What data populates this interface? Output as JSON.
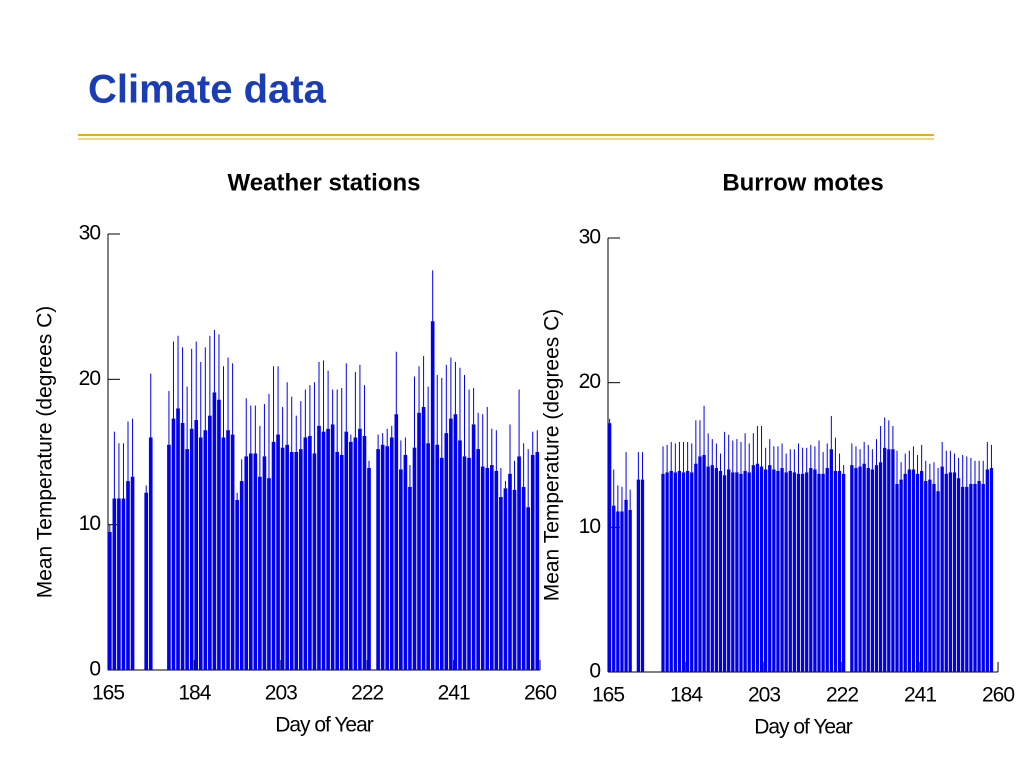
{
  "title": "Climate data",
  "chart_data": [
    {
      "type": "bar",
      "title": "Weather stations",
      "xlabel": "Day of Year",
      "ylabel": "Mean Temperature (degrees C)",
      "color": "#0000ee",
      "x": [
        165,
        166,
        167,
        168,
        169,
        170,
        171,
        172,
        173,
        174,
        175,
        176,
        177,
        178,
        179,
        180,
        181,
        182,
        183,
        184,
        185,
        186,
        187,
        188,
        189,
        190,
        191,
        192,
        193,
        194,
        195,
        196,
        197,
        198,
        199,
        200,
        201,
        202,
        203,
        204,
        205,
        206,
        207,
        208,
        209,
        210,
        211,
        212,
        213,
        214,
        215,
        216,
        217,
        218,
        219,
        220,
        221,
        222,
        223,
        224,
        225,
        226,
        227,
        228,
        229,
        230,
        231,
        232,
        233,
        234,
        235,
        236,
        237,
        238,
        239,
        240,
        241,
        242,
        243,
        244,
        245,
        246,
        247,
        248,
        249,
        250,
        251,
        252,
        253,
        254,
        255,
        256,
        257,
        258,
        259
      ],
      "values": [
        9.5,
        11.8,
        11.8,
        11.8,
        13,
        13.3,
        null,
        null,
        12.2,
        16,
        null,
        null,
        null,
        15.5,
        17.3,
        18,
        17,
        15.2,
        16.6,
        17.2,
        16,
        16.5,
        17.5,
        19.1,
        18.6,
        16,
        16.5,
        16.2,
        11.7,
        13,
        14.7,
        14.9,
        14.9,
        13.3,
        14.7,
        13.2,
        15.7,
        16.2,
        15.3,
        15.5,
        15,
        15,
        15.2,
        16,
        16.1,
        14.9,
        16.8,
        16.4,
        16.6,
        16.9,
        15,
        14.8,
        16.4,
        15.7,
        16,
        16.6,
        16.1,
        13.9,
        null,
        15.2,
        15.5,
        15.4,
        16,
        17.6,
        13.8,
        14.8,
        12.6,
        15.3,
        17.7,
        18.1,
        15.6,
        24,
        15.5,
        14.6,
        16.3,
        17.3,
        17.6,
        15.8,
        14.7,
        14.6,
        16.9,
        15.2,
        14,
        13.9,
        14.1,
        13.7,
        11.9,
        12.5,
        13.5,
        12.4,
        14.7,
        12.6,
        11.2,
        14.8,
        15
      ],
      "errors": [
        0.5,
        4.6,
        3.8,
        3.8,
        4.1,
        4,
        null,
        null,
        0.5,
        4.4,
        null,
        null,
        null,
        3.7,
        5.3,
        5,
        5.2,
        4.3,
        5.5,
        5.4,
        5.2,
        5.7,
        5.5,
        4.3,
        4.5,
        4.9,
        5,
        4.9,
        0.5,
        1.5,
        4,
        3.3,
        3.3,
        3.5,
        3.6,
        5.8,
        5.2,
        4.7,
        2.8,
        4.3,
        3.8,
        2.5,
        3.3,
        3.3,
        3.5,
        4.9,
        4.4,
        4.9,
        4,
        2.4,
        4.3,
        4.6,
        4.7,
        0.5,
        4.5,
        4.4,
        3.5,
        0.5,
        null,
        1,
        0.8,
        1.2,
        0.8,
        4.3,
        2,
        1.2,
        1.5,
        4.9,
        3.2,
        3.5,
        3.9,
        3.5,
        4.8,
        5.5,
        4.7,
        4.2,
        3.6,
        5,
        5.6,
        4.7,
        2.5,
        2.5,
        3.6,
        4.2,
        2.5,
        2.8,
        2,
        0.5,
        3.4,
        2,
        4.6,
        3,
        4,
        1.6,
        1.5
      ],
      "xlim": [
        165,
        260
      ],
      "xticks": [
        165,
        184,
        203,
        222,
        241,
        260
      ],
      "ylim": [
        0,
        30
      ],
      "yticks": [
        0,
        10,
        20,
        30
      ]
    },
    {
      "type": "bar",
      "title": "Burrow motes",
      "xlabel": "Day of Year",
      "ylabel": "Mean Temperature (degrees C)",
      "color": "#0000ee",
      "x": [
        165,
        166,
        167,
        168,
        169,
        170,
        171,
        172,
        173,
        174,
        175,
        176,
        177,
        178,
        179,
        180,
        181,
        182,
        183,
        184,
        185,
        186,
        187,
        188,
        189,
        190,
        191,
        192,
        193,
        194,
        195,
        196,
        197,
        198,
        199,
        200,
        201,
        202,
        203,
        204,
        205,
        206,
        207,
        208,
        209,
        210,
        211,
        212,
        213,
        214,
        215,
        216,
        217,
        218,
        219,
        220,
        221,
        222,
        223,
        224,
        225,
        226,
        227,
        228,
        229,
        230,
        231,
        232,
        233,
        234,
        235,
        236,
        237,
        238,
        239,
        240,
        241,
        242,
        243,
        244,
        245,
        246,
        247,
        248,
        249,
        250,
        251,
        252,
        253,
        254,
        255,
        256,
        257,
        258
      ],
      "values": [
        17.2,
        11.5,
        11.1,
        11.1,
        11.9,
        11.2,
        null,
        13.3,
        13.3,
        null,
        null,
        null,
        null,
        13.7,
        13.8,
        13.9,
        13.8,
        13.9,
        13.8,
        13.9,
        13.8,
        14.4,
        14.9,
        15,
        14.2,
        14.3,
        14.1,
        13.9,
        13.6,
        14,
        13.8,
        13.8,
        13.7,
        13.9,
        13.8,
        14.3,
        14.4,
        14.2,
        14,
        14.3,
        14,
        13.9,
        14.1,
        13.8,
        13.9,
        13.8,
        13.7,
        13.7,
        13.8,
        14.1,
        14,
        13.7,
        13.7,
        14.1,
        15.4,
        13.9,
        13.9,
        13.7,
        null,
        14.3,
        14.1,
        14.2,
        14.4,
        14.1,
        14,
        14.3,
        14.5,
        15.5,
        15.4,
        15.4,
        13,
        13.3,
        13.7,
        14,
        14,
        13.7,
        13.9,
        13.2,
        13.3,
        13,
        12.5,
        14.2,
        13.7,
        13.8,
        13.8,
        13.4,
        12.8,
        12.8,
        13,
        13,
        13.2,
        13,
        14,
        14.1
      ],
      "errors": [
        0.3,
        2.5,
        1.8,
        1.7,
        3.3,
        1.4,
        null,
        1.9,
        1.9,
        null,
        null,
        null,
        null,
        1.9,
        1.9,
        2,
        2,
        2,
        2.1,
        2,
        2,
        3,
        2.5,
        3.4,
        2.3,
        1.8,
        1.7,
        1.2,
        3,
        2.4,
        2.2,
        2.3,
        2.2,
        2.6,
        2,
        2.2,
        2.6,
        2.8,
        1.5,
        1.8,
        1.6,
        1.7,
        1.7,
        1.3,
        1.5,
        1.6,
        2.1,
        1.8,
        1.7,
        1.6,
        1.6,
        2.3,
        1.5,
        1.7,
        2.3,
        2.3,
        1.2,
        0.6,
        null,
        1.5,
        1.5,
        1.2,
        1.5,
        1.6,
        1.4,
        1.8,
        2.5,
        2.1,
        2,
        1.6,
        2.3,
        1.2,
        1.4,
        1.3,
        1.6,
        1.3,
        1.8,
        1.4,
        1.1,
        1.5,
        1.6,
        1.7,
        1.6,
        1.5,
        1.3,
        1.4,
        2.2,
        2.1,
        1.8,
        1.6,
        1.4,
        1.6,
        1.9,
        1.6
      ],
      "xlim": [
        165,
        260
      ],
      "xticks": [
        165,
        184,
        203,
        222,
        241,
        260
      ],
      "ylim": [
        0,
        30
      ],
      "yticks": [
        0,
        10,
        20,
        30
      ]
    }
  ]
}
